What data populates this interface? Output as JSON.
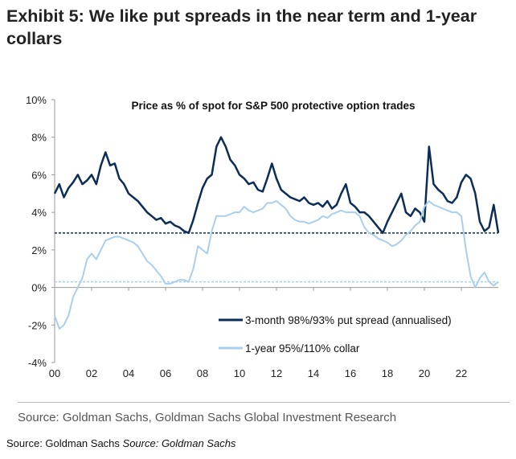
{
  "title": "Exhibit 5: We like put spreads in the near term and 1-year collars",
  "source_line": "Source: Goldman Sachs, Goldman Sachs Global Investment Research",
  "footer": {
    "source": "Source: Goldman Sachs",
    "source_italic": "Source: Goldman Sachs"
  },
  "chart_data": {
    "type": "line",
    "title": "Price as % of spot for S&P 500 protective option trades",
    "xlim": [
      2000,
      2024
    ],
    "ylim": [
      -4,
      10
    ],
    "x_ticks": [
      {
        "v": 2000,
        "label": "00"
      },
      {
        "v": 2002,
        "label": "02"
      },
      {
        "v": 2004,
        "label": "04"
      },
      {
        "v": 2006,
        "label": "06"
      },
      {
        "v": 2008,
        "label": "08"
      },
      {
        "v": 2010,
        "label": "10"
      },
      {
        "v": 2012,
        "label": "12"
      },
      {
        "v": 2014,
        "label": "14"
      },
      {
        "v": 2016,
        "label": "16"
      },
      {
        "v": 2018,
        "label": "18"
      },
      {
        "v": 2020,
        "label": "20"
      },
      {
        "v": 2022,
        "label": "22"
      }
    ],
    "y_ticks": [
      {
        "v": 10,
        "label": "10%"
      },
      {
        "v": 8,
        "label": "8%"
      },
      {
        "v": 6,
        "label": "6%"
      },
      {
        "v": 4,
        "label": "4%"
      },
      {
        "v": 2,
        "label": "2%"
      },
      {
        "v": 0,
        "label": "0%"
      },
      {
        "v": -2,
        "label": "-2%"
      },
      {
        "v": -4,
        "label": "-4%"
      }
    ],
    "grid": false,
    "legend_placement": "bottom-right",
    "series": [
      {
        "name": "3-month 98%/93% put spread (annualised)",
        "color": "#0b2d57",
        "x_start": 2000,
        "x_step": 0.25,
        "values": [
          5.0,
          5.5,
          4.8,
          5.3,
          5.6,
          6.0,
          5.5,
          5.7,
          6.0,
          5.5,
          6.5,
          7.2,
          6.5,
          6.6,
          5.8,
          5.5,
          5.0,
          4.8,
          4.6,
          4.3,
          4.0,
          3.8,
          3.6,
          3.7,
          3.4,
          3.5,
          3.3,
          3.2,
          3.0,
          2.9,
          3.6,
          4.5,
          5.3,
          5.8,
          6.0,
          7.5,
          8.0,
          7.5,
          6.8,
          6.5,
          6.0,
          5.8,
          5.5,
          5.6,
          5.2,
          5.1,
          5.8,
          6.6,
          5.8,
          5.2,
          5.0,
          4.8,
          4.7,
          4.6,
          4.8,
          4.5,
          4.4,
          4.5,
          4.3,
          4.6,
          4.2,
          4.4,
          5.0,
          5.5,
          4.5,
          4.3,
          4.0,
          4.0,
          3.8,
          3.5,
          3.2,
          2.9,
          3.5,
          4.0,
          4.5,
          5.0,
          4.0,
          3.8,
          4.2,
          4.0,
          3.5,
          7.5,
          5.5,
          5.2,
          5.0,
          4.6,
          4.5,
          4.8,
          5.6,
          6.0,
          5.8,
          5.0,
          3.5,
          3.0,
          3.2,
          4.4,
          2.9
        ]
      },
      {
        "name": "1-year 95%/110% collar",
        "color": "#a9cfee",
        "x_start": 2000,
        "x_step": 0.25,
        "values": [
          -1.5,
          -2.2,
          -2.0,
          -1.5,
          -0.5,
          0.0,
          0.5,
          1.5,
          1.8,
          1.5,
          2.0,
          2.5,
          2.6,
          2.7,
          2.7,
          2.6,
          2.5,
          2.4,
          2.2,
          1.8,
          1.4,
          1.2,
          0.9,
          0.6,
          0.2,
          0.2,
          0.3,
          0.4,
          0.4,
          0.3,
          1.0,
          2.2,
          2.0,
          1.8,
          3.0,
          3.8,
          3.8,
          3.8,
          3.9,
          4.0,
          4.0,
          4.3,
          4.1,
          4.0,
          4.1,
          4.2,
          4.5,
          4.5,
          4.6,
          4.4,
          4.2,
          3.8,
          3.6,
          3.5,
          3.5,
          3.4,
          3.5,
          3.6,
          3.8,
          3.7,
          3.9,
          4.0,
          4.1,
          4.0,
          4.0,
          4.0,
          3.8,
          3.2,
          2.9,
          2.8,
          2.6,
          2.5,
          2.4,
          2.2,
          2.3,
          2.5,
          2.8,
          3.0,
          3.3,
          3.5,
          4.3,
          4.6,
          4.4,
          4.3,
          4.2,
          4.1,
          4.0,
          4.0,
          3.8,
          2.0,
          0.6,
          0.0,
          0.5,
          0.8,
          0.3,
          0.1,
          0.3
        ]
      }
    ],
    "reference_lines": [
      {
        "y": 2.9,
        "color": "#0b2d57",
        "style": "dashed"
      },
      {
        "y": 0.3,
        "color": "#a9cfee",
        "style": "dashed"
      }
    ]
  }
}
